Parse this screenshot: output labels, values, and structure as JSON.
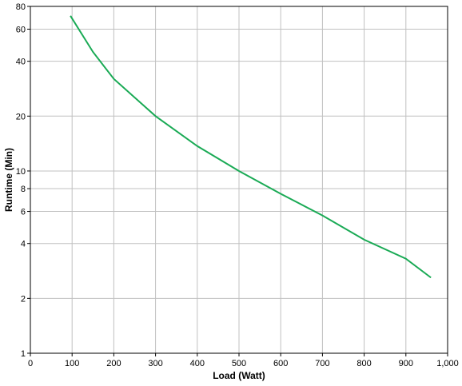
{
  "chart_data": {
    "type": "line",
    "x_label": "Load (Watt)",
    "y_label": "Runtime (Min)",
    "x": [
      96,
      150,
      200,
      300,
      400,
      500,
      600,
      700,
      800,
      900,
      960
    ],
    "series": [
      {
        "name": "Runtime",
        "color": "#1aaa55",
        "values": [
          71,
          45,
          32,
          20,
          13.7,
          10,
          7.5,
          5.7,
          4.2,
          3.3,
          2.6
        ]
      }
    ],
    "xlim": [
      0,
      1000
    ],
    "xticks": [
      0,
      100,
      200,
      300,
      400,
      500,
      600,
      700,
      800,
      900,
      {
        "value": 1000,
        "label": "1,000"
      }
    ],
    "ylim": [
      1,
      80
    ],
    "yticks": [
      1,
      2,
      4,
      6,
      8,
      10,
      20,
      40,
      60,
      80
    ],
    "yscale": "log",
    "grid": true
  }
}
